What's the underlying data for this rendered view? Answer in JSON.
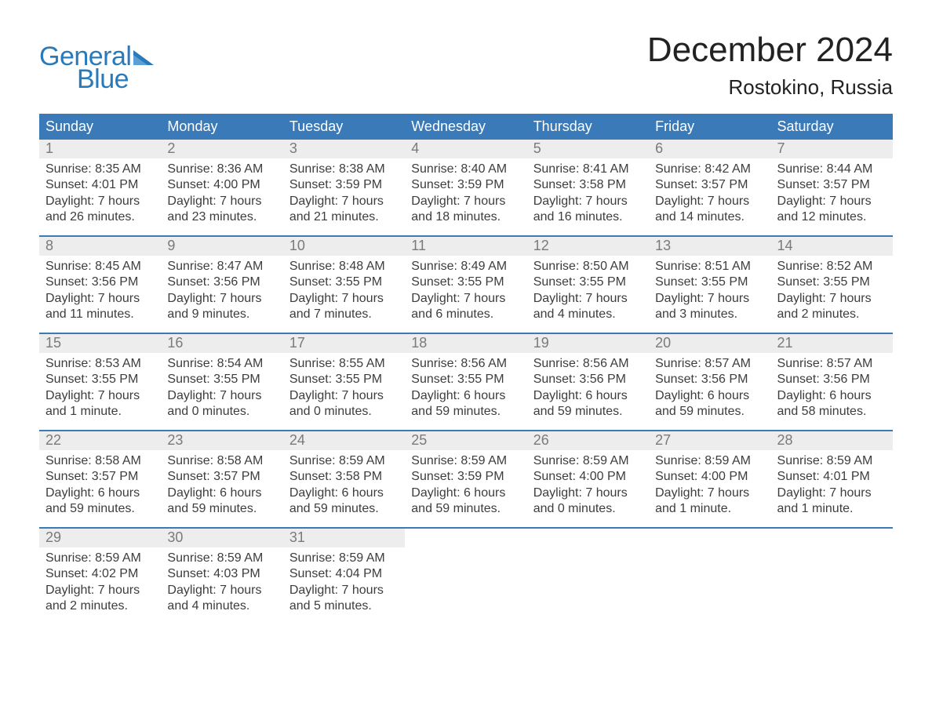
{
  "brand": {
    "line1": "General",
    "line2": "Blue",
    "text_color": "#2a7ab9"
  },
  "title": {
    "month_year": "December 2024",
    "location": "Rostokino, Russia",
    "title_color": "#222222",
    "title_fontsize": 44,
    "location_fontsize": 26
  },
  "colors": {
    "header_bg": "#3a7ab8",
    "header_text": "#ffffff",
    "daynum_bg": "#ededed",
    "daynum_text": "#7a7a7a",
    "body_text": "#3d3d3d",
    "row_divider": "#3a7ab8",
    "page_bg": "#ffffff"
  },
  "day_headers": [
    "Sunday",
    "Monday",
    "Tuesday",
    "Wednesday",
    "Thursday",
    "Friday",
    "Saturday"
  ],
  "weeks": [
    [
      {
        "num": "1",
        "sunrise": "Sunrise: 8:35 AM",
        "sunset": "Sunset: 4:01 PM",
        "dl1": "Daylight: 7 hours",
        "dl2": "and 26 minutes."
      },
      {
        "num": "2",
        "sunrise": "Sunrise: 8:36 AM",
        "sunset": "Sunset: 4:00 PM",
        "dl1": "Daylight: 7 hours",
        "dl2": "and 23 minutes."
      },
      {
        "num": "3",
        "sunrise": "Sunrise: 8:38 AM",
        "sunset": "Sunset: 3:59 PM",
        "dl1": "Daylight: 7 hours",
        "dl2": "and 21 minutes."
      },
      {
        "num": "4",
        "sunrise": "Sunrise: 8:40 AM",
        "sunset": "Sunset: 3:59 PM",
        "dl1": "Daylight: 7 hours",
        "dl2": "and 18 minutes."
      },
      {
        "num": "5",
        "sunrise": "Sunrise: 8:41 AM",
        "sunset": "Sunset: 3:58 PM",
        "dl1": "Daylight: 7 hours",
        "dl2": "and 16 minutes."
      },
      {
        "num": "6",
        "sunrise": "Sunrise: 8:42 AM",
        "sunset": "Sunset: 3:57 PM",
        "dl1": "Daylight: 7 hours",
        "dl2": "and 14 minutes."
      },
      {
        "num": "7",
        "sunrise": "Sunrise: 8:44 AM",
        "sunset": "Sunset: 3:57 PM",
        "dl1": "Daylight: 7 hours",
        "dl2": "and 12 minutes."
      }
    ],
    [
      {
        "num": "8",
        "sunrise": "Sunrise: 8:45 AM",
        "sunset": "Sunset: 3:56 PM",
        "dl1": "Daylight: 7 hours",
        "dl2": "and 11 minutes."
      },
      {
        "num": "9",
        "sunrise": "Sunrise: 8:47 AM",
        "sunset": "Sunset: 3:56 PM",
        "dl1": "Daylight: 7 hours",
        "dl2": "and 9 minutes."
      },
      {
        "num": "10",
        "sunrise": "Sunrise: 8:48 AM",
        "sunset": "Sunset: 3:55 PM",
        "dl1": "Daylight: 7 hours",
        "dl2": "and 7 minutes."
      },
      {
        "num": "11",
        "sunrise": "Sunrise: 8:49 AM",
        "sunset": "Sunset: 3:55 PM",
        "dl1": "Daylight: 7 hours",
        "dl2": "and 6 minutes."
      },
      {
        "num": "12",
        "sunrise": "Sunrise: 8:50 AM",
        "sunset": "Sunset: 3:55 PM",
        "dl1": "Daylight: 7 hours",
        "dl2": "and 4 minutes."
      },
      {
        "num": "13",
        "sunrise": "Sunrise: 8:51 AM",
        "sunset": "Sunset: 3:55 PM",
        "dl1": "Daylight: 7 hours",
        "dl2": "and 3 minutes."
      },
      {
        "num": "14",
        "sunrise": "Sunrise: 8:52 AM",
        "sunset": "Sunset: 3:55 PM",
        "dl1": "Daylight: 7 hours",
        "dl2": "and 2 minutes."
      }
    ],
    [
      {
        "num": "15",
        "sunrise": "Sunrise: 8:53 AM",
        "sunset": "Sunset: 3:55 PM",
        "dl1": "Daylight: 7 hours",
        "dl2": "and 1 minute."
      },
      {
        "num": "16",
        "sunrise": "Sunrise: 8:54 AM",
        "sunset": "Sunset: 3:55 PM",
        "dl1": "Daylight: 7 hours",
        "dl2": "and 0 minutes."
      },
      {
        "num": "17",
        "sunrise": "Sunrise: 8:55 AM",
        "sunset": "Sunset: 3:55 PM",
        "dl1": "Daylight: 7 hours",
        "dl2": "and 0 minutes."
      },
      {
        "num": "18",
        "sunrise": "Sunrise: 8:56 AM",
        "sunset": "Sunset: 3:55 PM",
        "dl1": "Daylight: 6 hours",
        "dl2": "and 59 minutes."
      },
      {
        "num": "19",
        "sunrise": "Sunrise: 8:56 AM",
        "sunset": "Sunset: 3:56 PM",
        "dl1": "Daylight: 6 hours",
        "dl2": "and 59 minutes."
      },
      {
        "num": "20",
        "sunrise": "Sunrise: 8:57 AM",
        "sunset": "Sunset: 3:56 PM",
        "dl1": "Daylight: 6 hours",
        "dl2": "and 59 minutes."
      },
      {
        "num": "21",
        "sunrise": "Sunrise: 8:57 AM",
        "sunset": "Sunset: 3:56 PM",
        "dl1": "Daylight: 6 hours",
        "dl2": "and 58 minutes."
      }
    ],
    [
      {
        "num": "22",
        "sunrise": "Sunrise: 8:58 AM",
        "sunset": "Sunset: 3:57 PM",
        "dl1": "Daylight: 6 hours",
        "dl2": "and 59 minutes."
      },
      {
        "num": "23",
        "sunrise": "Sunrise: 8:58 AM",
        "sunset": "Sunset: 3:57 PM",
        "dl1": "Daylight: 6 hours",
        "dl2": "and 59 minutes."
      },
      {
        "num": "24",
        "sunrise": "Sunrise: 8:59 AM",
        "sunset": "Sunset: 3:58 PM",
        "dl1": "Daylight: 6 hours",
        "dl2": "and 59 minutes."
      },
      {
        "num": "25",
        "sunrise": "Sunrise: 8:59 AM",
        "sunset": "Sunset: 3:59 PM",
        "dl1": "Daylight: 6 hours",
        "dl2": "and 59 minutes."
      },
      {
        "num": "26",
        "sunrise": "Sunrise: 8:59 AM",
        "sunset": "Sunset: 4:00 PM",
        "dl1": "Daylight: 7 hours",
        "dl2": "and 0 minutes."
      },
      {
        "num": "27",
        "sunrise": "Sunrise: 8:59 AM",
        "sunset": "Sunset: 4:00 PM",
        "dl1": "Daylight: 7 hours",
        "dl2": "and 1 minute."
      },
      {
        "num": "28",
        "sunrise": "Sunrise: 8:59 AM",
        "sunset": "Sunset: 4:01 PM",
        "dl1": "Daylight: 7 hours",
        "dl2": "and 1 minute."
      }
    ],
    [
      {
        "num": "29",
        "sunrise": "Sunrise: 8:59 AM",
        "sunset": "Sunset: 4:02 PM",
        "dl1": "Daylight: 7 hours",
        "dl2": "and 2 minutes."
      },
      {
        "num": "30",
        "sunrise": "Sunrise: 8:59 AM",
        "sunset": "Sunset: 4:03 PM",
        "dl1": "Daylight: 7 hours",
        "dl2": "and 4 minutes."
      },
      {
        "num": "31",
        "sunrise": "Sunrise: 8:59 AM",
        "sunset": "Sunset: 4:04 PM",
        "dl1": "Daylight: 7 hours",
        "dl2": "and 5 minutes."
      },
      null,
      null,
      null,
      null
    ]
  ]
}
